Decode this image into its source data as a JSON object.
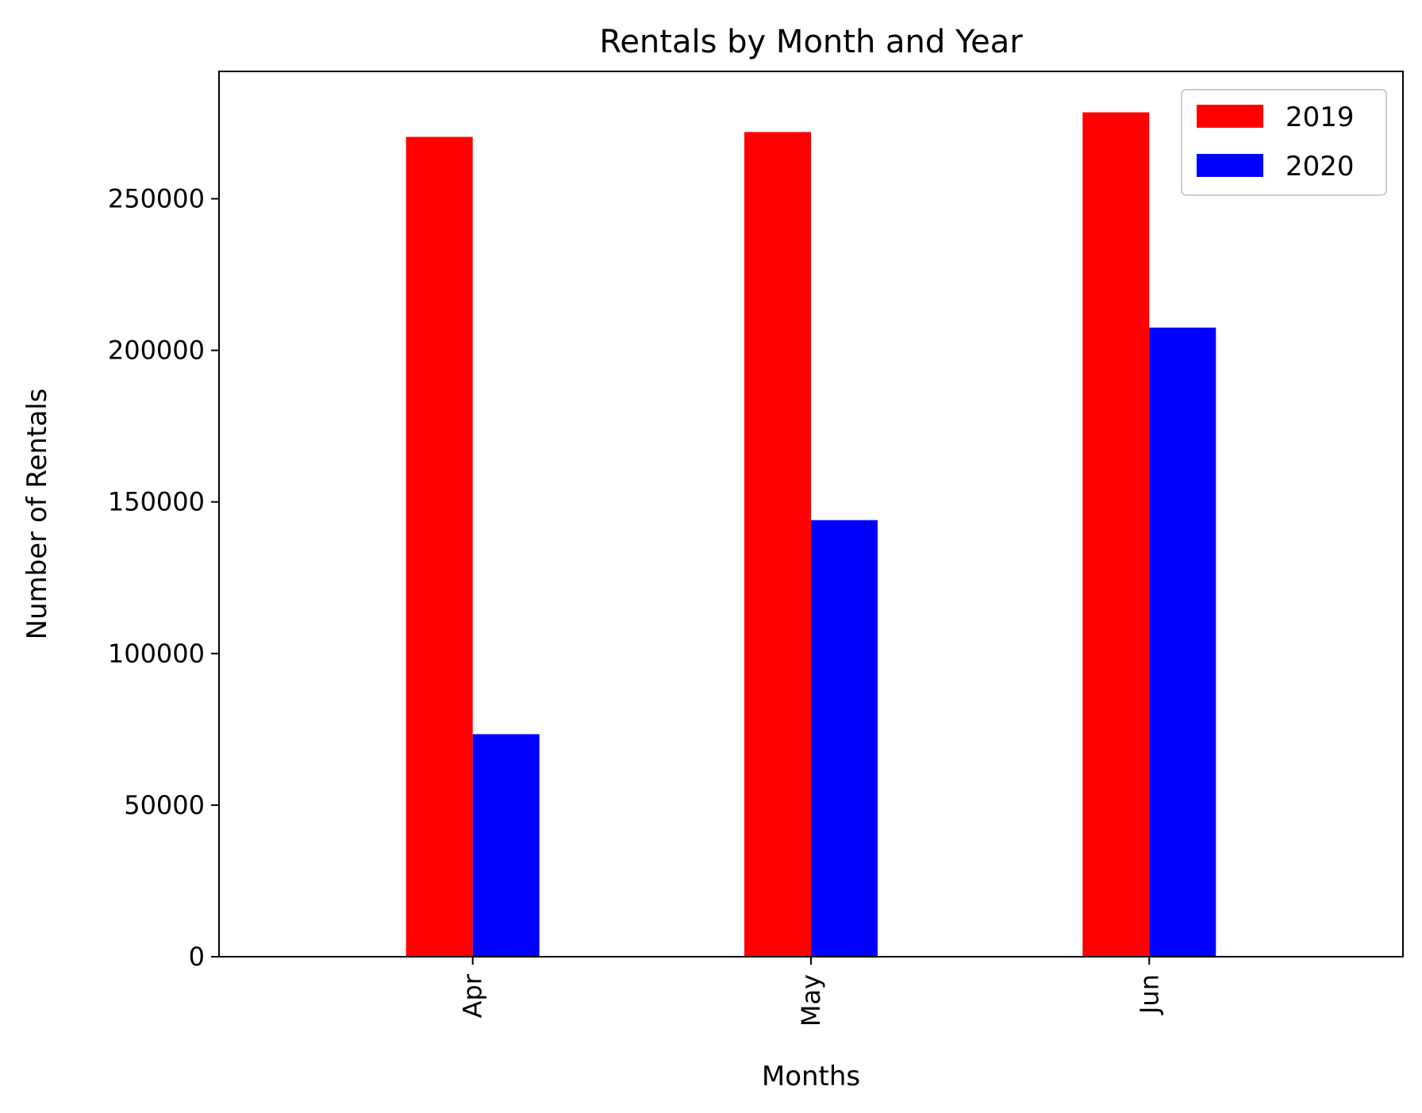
{
  "chart_data": {
    "type": "bar",
    "title": "Rentals by Month and Year",
    "xlabel": "Months",
    "ylabel": "Number of Rentals",
    "categories": [
      "Apr",
      "May",
      "Jun"
    ],
    "series": [
      {
        "name": "2019",
        "color": "#ff0000",
        "values": [
          270400,
          272000,
          278500
        ]
      },
      {
        "name": "2020",
        "color": "#0000ff",
        "values": [
          73400,
          144000,
          207500
        ]
      }
    ],
    "ylim": [
      0,
      292000
    ],
    "yticks": [
      0,
      50000,
      100000,
      150000,
      200000,
      250000
    ],
    "ytick_labels": [
      "0",
      "50000",
      "100000",
      "150000",
      "200000",
      "250000"
    ],
    "legend": "top-right",
    "grid": false,
    "xtick_rotation": "vertical"
  }
}
